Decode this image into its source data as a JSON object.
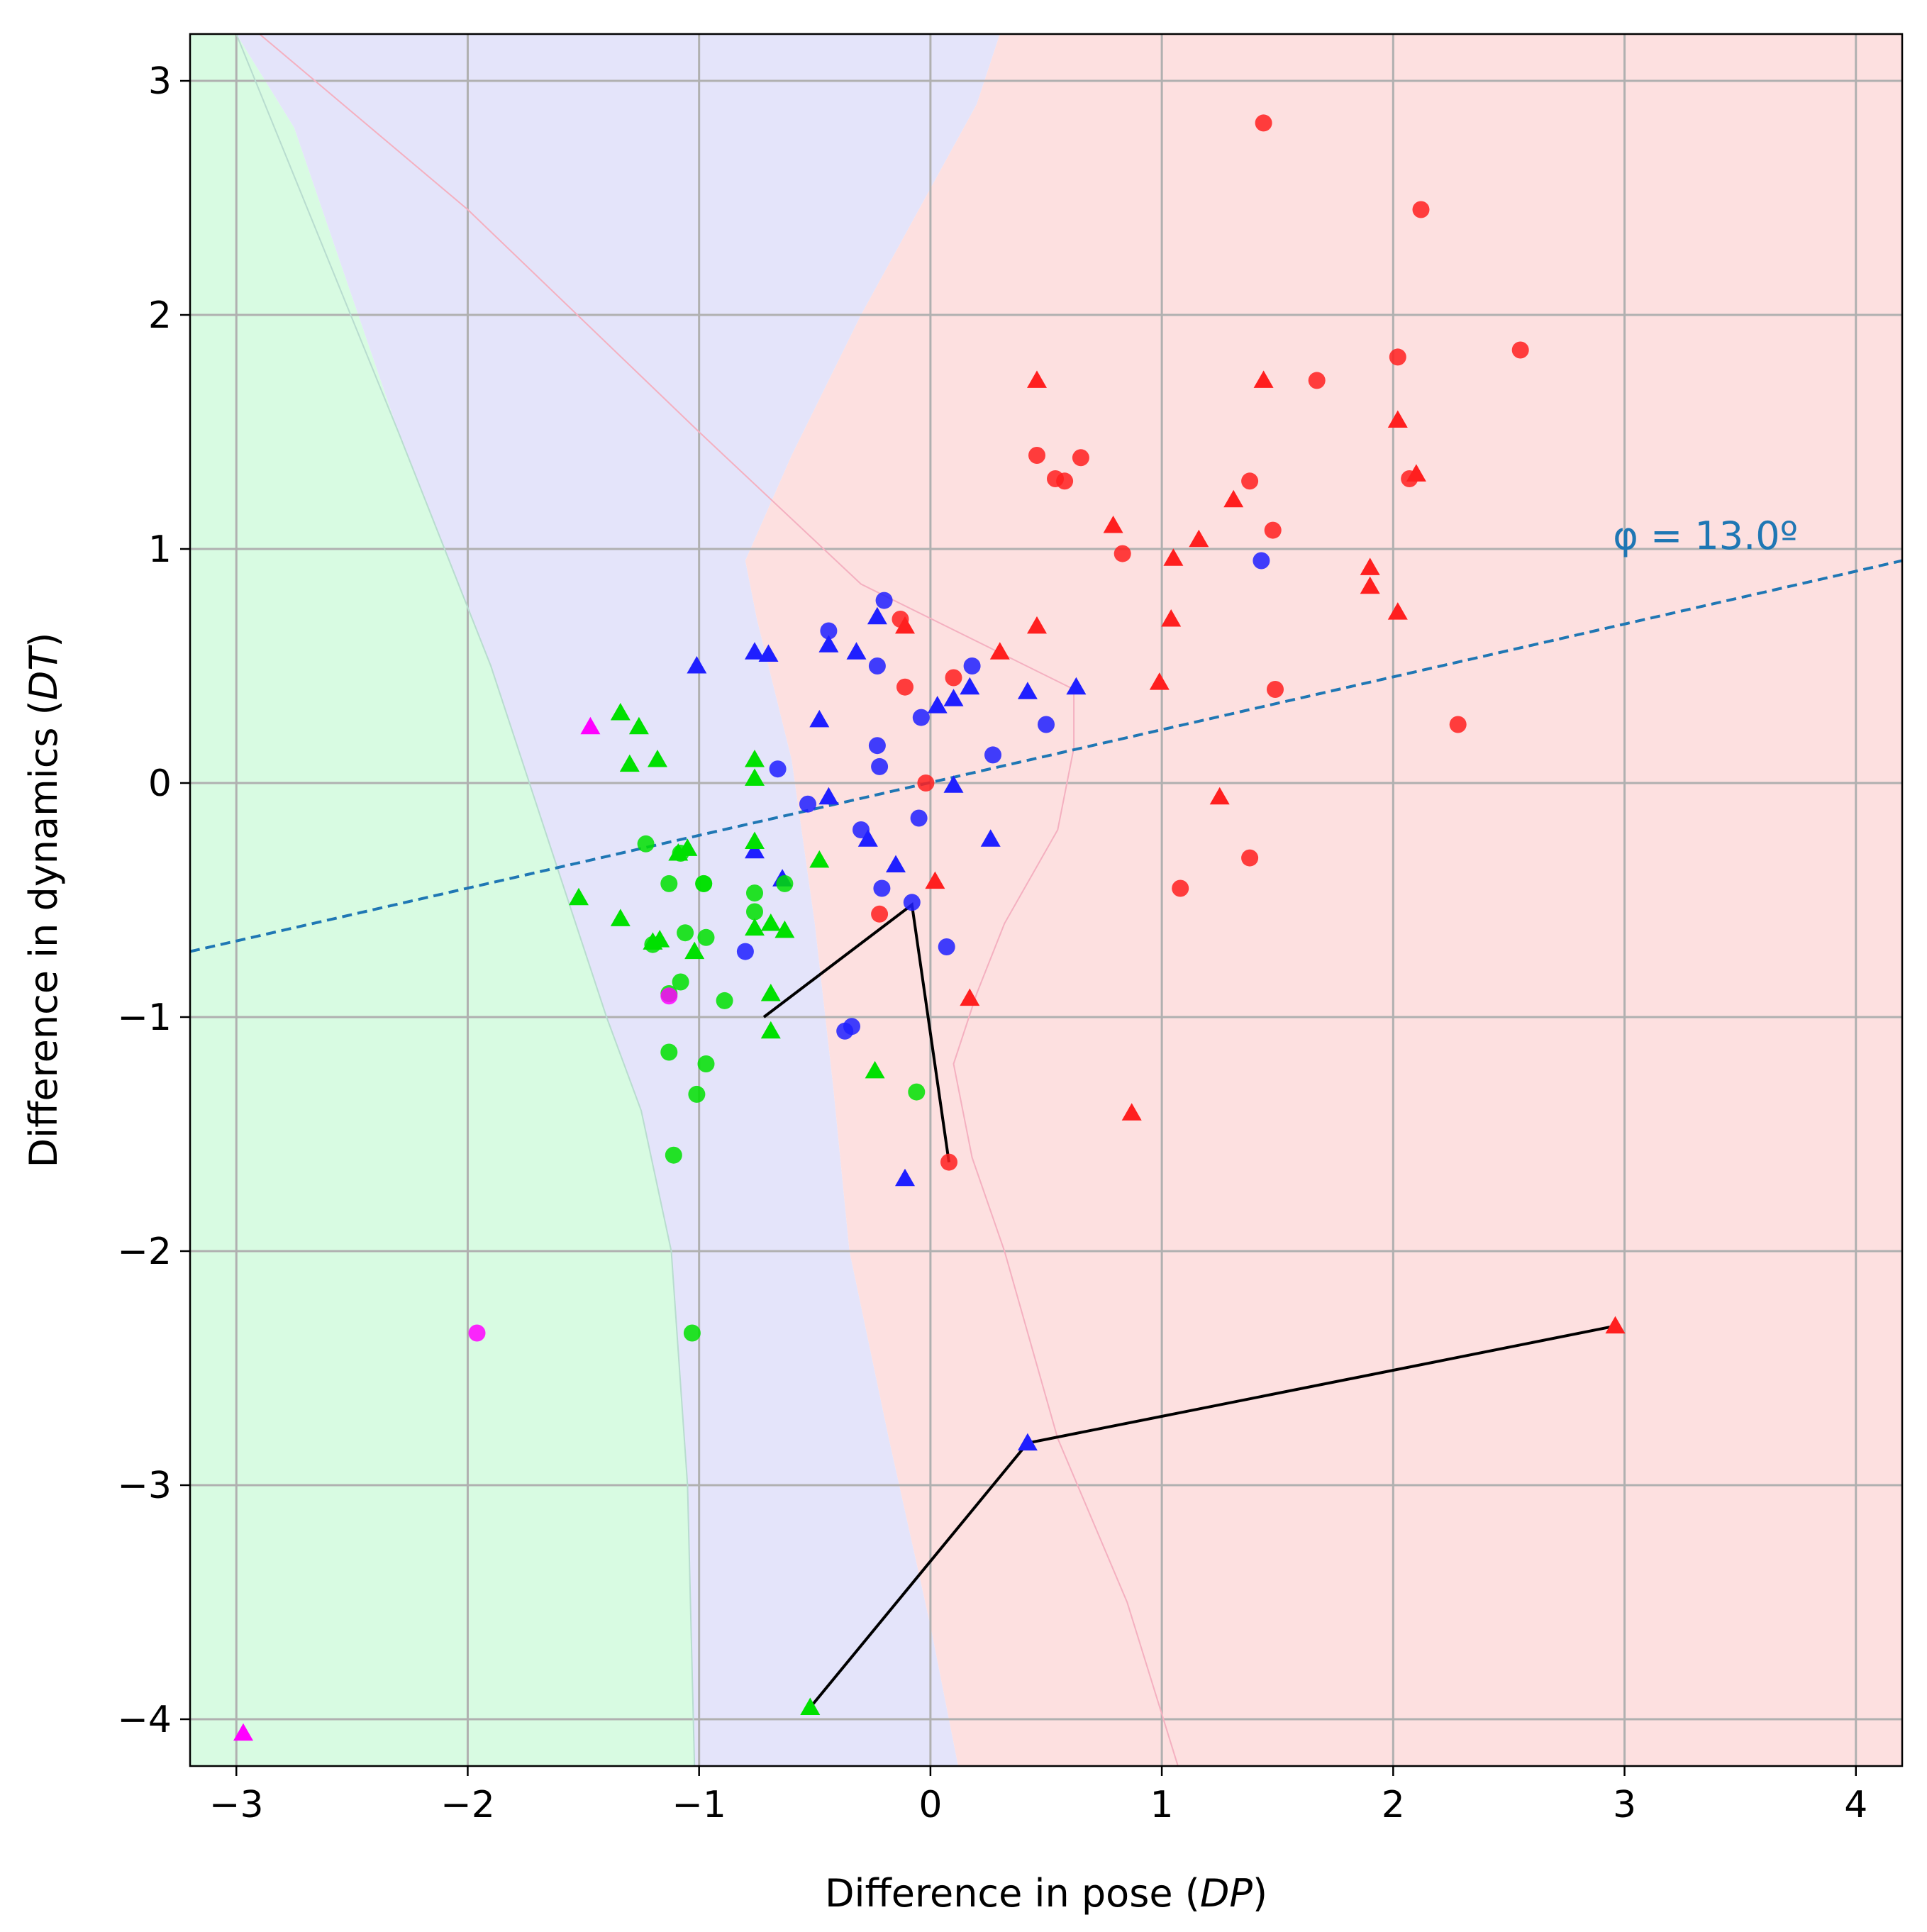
{
  "chart_data": {
    "type": "scatter",
    "xlabel": {
      "prefix": "Difference in pose (",
      "var": "DP",
      "suffix": ")"
    },
    "ylabel": {
      "prefix": "Difference in dynamics (",
      "var": "DT",
      "suffix": ")"
    },
    "xlim": [
      -3.2,
      4.2
    ],
    "ylim": [
      -4.2,
      3.2
    ],
    "xticks": [
      -3,
      -2,
      -1,
      0,
      1,
      2,
      3,
      4
    ],
    "yticks": [
      -4,
      -3,
      -2,
      -1,
      0,
      1,
      2,
      3
    ],
    "xtick_labels": [
      "−3",
      "−2",
      "−1",
      "0",
      "1",
      "2",
      "3",
      "4"
    ],
    "ytick_labels": [
      "−4",
      "−3",
      "−2",
      "−1",
      "0",
      "1",
      "2",
      "3"
    ],
    "grid": true,
    "colors": {
      "red": "#ff1f1f",
      "blue": "#1f1fff",
      "green": "#00e000",
      "magenta": "#ff00ff",
      "region_red": "#fde0e0",
      "region_blue": "#e4e4fa",
      "region_green": "#d8fbe2",
      "dashed_line": "#1f77b4"
    },
    "regions": [
      {
        "name": "green",
        "polygon": [
          [
            -3.2,
            -4.2
          ],
          [
            -1.02,
            -4.2
          ],
          [
            -1.05,
            -3.0
          ],
          [
            -1.12,
            -2.0
          ],
          [
            -1.25,
            -1.4
          ],
          [
            -1.4,
            -1.0
          ],
          [
            -1.6,
            -0.4
          ],
          [
            -1.9,
            0.5
          ],
          [
            -2.3,
            1.5
          ],
          [
            -2.75,
            2.8
          ],
          [
            -3.0,
            3.2
          ],
          [
            -3.2,
            3.2
          ]
        ]
      },
      {
        "name": "blue",
        "polygon": [
          [
            -1.02,
            -4.2
          ],
          [
            0.12,
            -4.2
          ],
          [
            0.0,
            -3.6
          ],
          [
            -0.18,
            -2.8
          ],
          [
            -0.35,
            -2.0
          ],
          [
            -0.42,
            -1.3
          ],
          [
            -0.5,
            -0.6
          ],
          [
            -0.6,
            0.1
          ],
          [
            -0.75,
            0.7
          ],
          [
            -0.8,
            0.95
          ],
          [
            -0.6,
            1.4
          ],
          [
            -0.3,
            2.0
          ],
          [
            0.2,
            2.9
          ],
          [
            0.3,
            3.2
          ],
          [
            -3.0,
            3.2
          ],
          [
            -2.75,
            2.8
          ],
          [
            -2.3,
            1.5
          ],
          [
            -1.9,
            0.5
          ],
          [
            -1.6,
            -0.4
          ],
          [
            -1.4,
            -1.0
          ],
          [
            -1.25,
            -1.4
          ],
          [
            -1.12,
            -2.0
          ],
          [
            -1.05,
            -3.0
          ]
        ]
      },
      {
        "name": "red",
        "polygon": [
          [
            0.12,
            -4.2
          ],
          [
            4.2,
            -4.2
          ],
          [
            4.2,
            3.2
          ],
          [
            0.3,
            3.2
          ],
          [
            0.2,
            2.9
          ],
          [
            -0.3,
            2.0
          ],
          [
            -0.6,
            1.4
          ],
          [
            -0.8,
            0.95
          ],
          [
            -0.75,
            0.7
          ],
          [
            -0.6,
            0.1
          ],
          [
            -0.5,
            -0.6
          ],
          [
            -0.42,
            -1.3
          ],
          [
            -0.35,
            -2.0
          ],
          [
            -0.18,
            -2.8
          ],
          [
            0.0,
            -3.6
          ]
        ]
      }
    ],
    "region_boundaries": {
      "green_blue": [
        [
          -3.0,
          3.2
        ],
        [
          -2.3,
          1.5
        ],
        [
          -1.9,
          0.5
        ],
        [
          -1.6,
          -0.4
        ],
        [
          -1.4,
          -1.0
        ],
        [
          -1.25,
          -1.4
        ],
        [
          -1.12,
          -2.0
        ],
        [
          -1.05,
          -3.0
        ],
        [
          -1.02,
          -4.2
        ]
      ],
      "blue_red": [
        [
          -2.9,
          3.2
        ],
        [
          -2.0,
          2.45
        ],
        [
          -1.0,
          1.5
        ],
        [
          -0.3,
          0.85
        ],
        [
          0.62,
          0.4
        ],
        [
          0.62,
          0.15
        ],
        [
          0.55,
          -0.2
        ],
        [
          0.32,
          -0.6
        ],
        [
          0.2,
          -0.9
        ],
        [
          0.1,
          -1.2
        ],
        [
          0.18,
          -1.6
        ],
        [
          0.32,
          -2.0
        ],
        [
          0.55,
          -2.8
        ],
        [
          0.85,
          -3.5
        ],
        [
          1.07,
          -4.2
        ]
      ]
    },
    "line": {
      "name": "φ = 13.0º",
      "style": "dashed",
      "angle_deg": 13.0,
      "x": [
        -3.2,
        4.2
      ],
      "y": [
        -0.72,
        0.95
      ]
    },
    "annotation": {
      "text": "φ = 13.0º",
      "x": 2.95,
      "y": 1.0
    },
    "connectors": [
      {
        "x": [
          -0.72,
          -0.08,
          0.08
        ],
        "y": [
          -1.0,
          -0.52,
          -1.62
        ]
      },
      {
        "x": [
          -0.52,
          0.42,
          2.96
        ],
        "y": [
          -3.95,
          -2.82,
          -2.32
        ]
      }
    ],
    "series": [
      {
        "color": "red",
        "marker": "circle",
        "x": [
          1.44,
          2.12,
          2.02,
          2.55,
          1.67,
          0.46,
          0.65,
          0.58,
          0.54,
          1.38,
          2.07,
          1.48,
          0.83,
          1.49,
          2.28,
          1.38,
          1.08,
          -0.11,
          0.1,
          -0.02,
          -0.22,
          0.08,
          -0.13
        ],
        "y": [
          2.82,
          2.45,
          1.82,
          1.85,
          1.72,
          1.4,
          1.39,
          1.29,
          1.3,
          1.29,
          1.3,
          1.08,
          0.98,
          0.4,
          0.25,
          -0.32,
          -0.45,
          0.41,
          0.45,
          0.0,
          -0.56,
          -1.62,
          0.7
        ]
      },
      {
        "color": "red",
        "marker": "triangle",
        "x": [
          0.46,
          1.44,
          2.02,
          2.1,
          1.31,
          0.79,
          1.16,
          1.05,
          1.9,
          1.9,
          2.02,
          1.04,
          0.46,
          0.3,
          0.99,
          1.25,
          0.17,
          0.87,
          2.96,
          -0.11,
          0.02
        ],
        "y": [
          1.72,
          1.72,
          1.55,
          1.32,
          1.21,
          1.1,
          1.04,
          0.96,
          0.92,
          0.84,
          0.73,
          0.7,
          0.67,
          0.56,
          0.43,
          -0.06,
          -0.92,
          -1.41,
          -2.32,
          0.67,
          -0.42
        ]
      },
      {
        "color": "blue",
        "marker": "circle",
        "x": [
          -0.44,
          -0.2,
          -0.23,
          0.18,
          -0.04,
          -0.23,
          -0.66,
          0.27,
          0.5,
          -0.22,
          -0.53,
          -0.05,
          -0.3,
          -0.21,
          -0.08,
          0.07,
          -0.8,
          -0.37,
          -0.34,
          1.43
        ],
        "y": [
          0.65,
          0.78,
          0.5,
          0.5,
          0.28,
          0.16,
          0.06,
          0.12,
          0.25,
          0.07,
          -0.09,
          -0.15,
          -0.2,
          -0.45,
          -0.51,
          -0.7,
          -0.72,
          -1.06,
          -1.04,
          0.95
        ]
      },
      {
        "color": "blue",
        "marker": "triangle",
        "x": [
          -0.23,
          -0.44,
          -0.32,
          -0.7,
          -0.76,
          -1.01,
          0.17,
          0.1,
          0.03,
          0.42,
          0.63,
          -0.48,
          -0.44,
          0.1,
          -0.27,
          0.26,
          -0.76,
          -0.15,
          -0.64,
          0.42,
          -0.11
        ],
        "y": [
          0.71,
          0.59,
          0.56,
          0.55,
          0.56,
          0.5,
          0.41,
          0.36,
          0.33,
          0.39,
          0.41,
          0.27,
          -0.06,
          -0.01,
          -0.24,
          -0.24,
          -0.29,
          -0.35,
          -0.41,
          -2.82,
          -1.69
        ]
      },
      {
        "color": "green",
        "marker": "circle",
        "x": [
          -1.23,
          -1.13,
          -0.98,
          -0.76,
          -0.63,
          -0.76,
          -1.06,
          -0.97,
          -1.2,
          -1.13,
          -1.08,
          -1.08,
          -0.98,
          -0.89,
          -1.13,
          -0.97,
          -1.01,
          -1.11,
          -0.06,
          -1.03
        ],
        "y": [
          -0.26,
          -0.43,
          -0.43,
          -0.47,
          -0.43,
          -0.55,
          -0.64,
          -0.66,
          -0.69,
          -0.9,
          -0.85,
          -0.3,
          -0.43,
          -0.93,
          -1.15,
          -1.2,
          -1.33,
          -1.59,
          -1.32,
          -2.35
        ]
      },
      {
        "color": "green",
        "marker": "triangle",
        "x": [
          -1.34,
          -1.26,
          -1.3,
          -1.18,
          -0.76,
          -0.76,
          -1.05,
          -1.09,
          -1.52,
          -1.34,
          -1.17,
          -0.76,
          -0.69,
          -0.76,
          -0.48,
          -0.63,
          -1.02,
          -0.69,
          -0.69,
          -0.24,
          -0.52,
          -1.2
        ],
        "y": [
          0.3,
          0.24,
          0.08,
          0.1,
          0.1,
          0.02,
          -0.28,
          -0.3,
          -0.49,
          -0.58,
          -0.67,
          -0.25,
          -0.6,
          -0.62,
          -0.33,
          -0.63,
          -0.72,
          -0.9,
          -1.06,
          -1.23,
          -3.95,
          -0.68
        ]
      },
      {
        "color": "magenta",
        "marker": "circle",
        "x": [
          -1.96,
          -1.13
        ],
        "y": [
          -2.35,
          -0.91
        ]
      },
      {
        "color": "magenta",
        "marker": "triangle",
        "x": [
          -2.97,
          -1.47
        ],
        "y": [
          -4.06,
          0.24
        ]
      }
    ]
  }
}
